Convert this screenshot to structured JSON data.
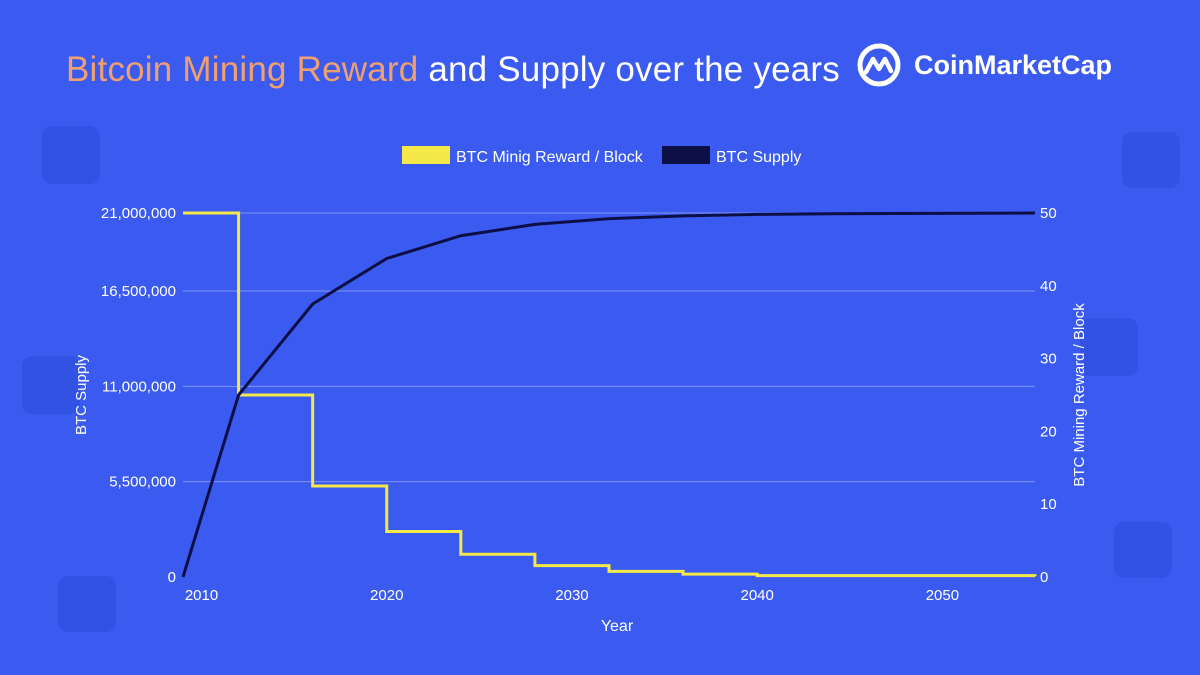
{
  "title": {
    "highlight": "Bitcoin Mining Reward",
    "rest": " and Supply over the years",
    "highlight_color": "#f0a070"
  },
  "brand": {
    "name": "CoinMarketCap",
    "icon": "coinmarketcap-logo-icon"
  },
  "colors": {
    "background": "#3b5bf0",
    "reward_line": "#f5e94a",
    "supply_line": "#0c0f45",
    "gridline": "#7f93f6"
  },
  "chart_data": {
    "type": "line",
    "x_label": "Year",
    "y_left_label": "BTC Supply",
    "y_right_label": "BTC Mining Reward / Block",
    "x_range": [
      2009,
      2055
    ],
    "x_ticks": [
      "2010",
      "2020",
      "2030",
      "2040",
      "2050"
    ],
    "y_left_range": [
      0,
      21000000
    ],
    "y_left_ticks": [
      "0",
      "5,500,000",
      "11,000,000",
      "16,500,000",
      "21,000,000"
    ],
    "y_left_tick_values": [
      0,
      5500000,
      11000000,
      16500000,
      21000000
    ],
    "y_right_range": [
      0,
      50
    ],
    "y_right_ticks": [
      "0",
      "10",
      "20",
      "30",
      "40",
      "50"
    ],
    "legend": [
      "BTC Minig Reward / Block",
      "BTC Supply"
    ],
    "series": [
      {
        "name": "BTC Minig Reward / Block",
        "axis": "right",
        "step": true,
        "x": [
          2009,
          2012,
          2016,
          2020,
          2024,
          2028,
          2032,
          2036,
          2040,
          2055
        ],
        "y": [
          50,
          25,
          12.5,
          6.25,
          3.125,
          1.5625,
          0.78125,
          0.390625,
          0.1953125,
          0.1
        ]
      },
      {
        "name": "BTC Supply",
        "axis": "left",
        "step": false,
        "x": [
          2009,
          2012,
          2016,
          2020,
          2024,
          2028,
          2032,
          2036,
          2040,
          2044,
          2055
        ],
        "y": [
          0,
          10500000,
          15750000,
          18375000,
          19687500,
          20343750,
          20671875,
          20835938,
          20917969,
          20958984,
          21000000
        ]
      }
    ]
  }
}
